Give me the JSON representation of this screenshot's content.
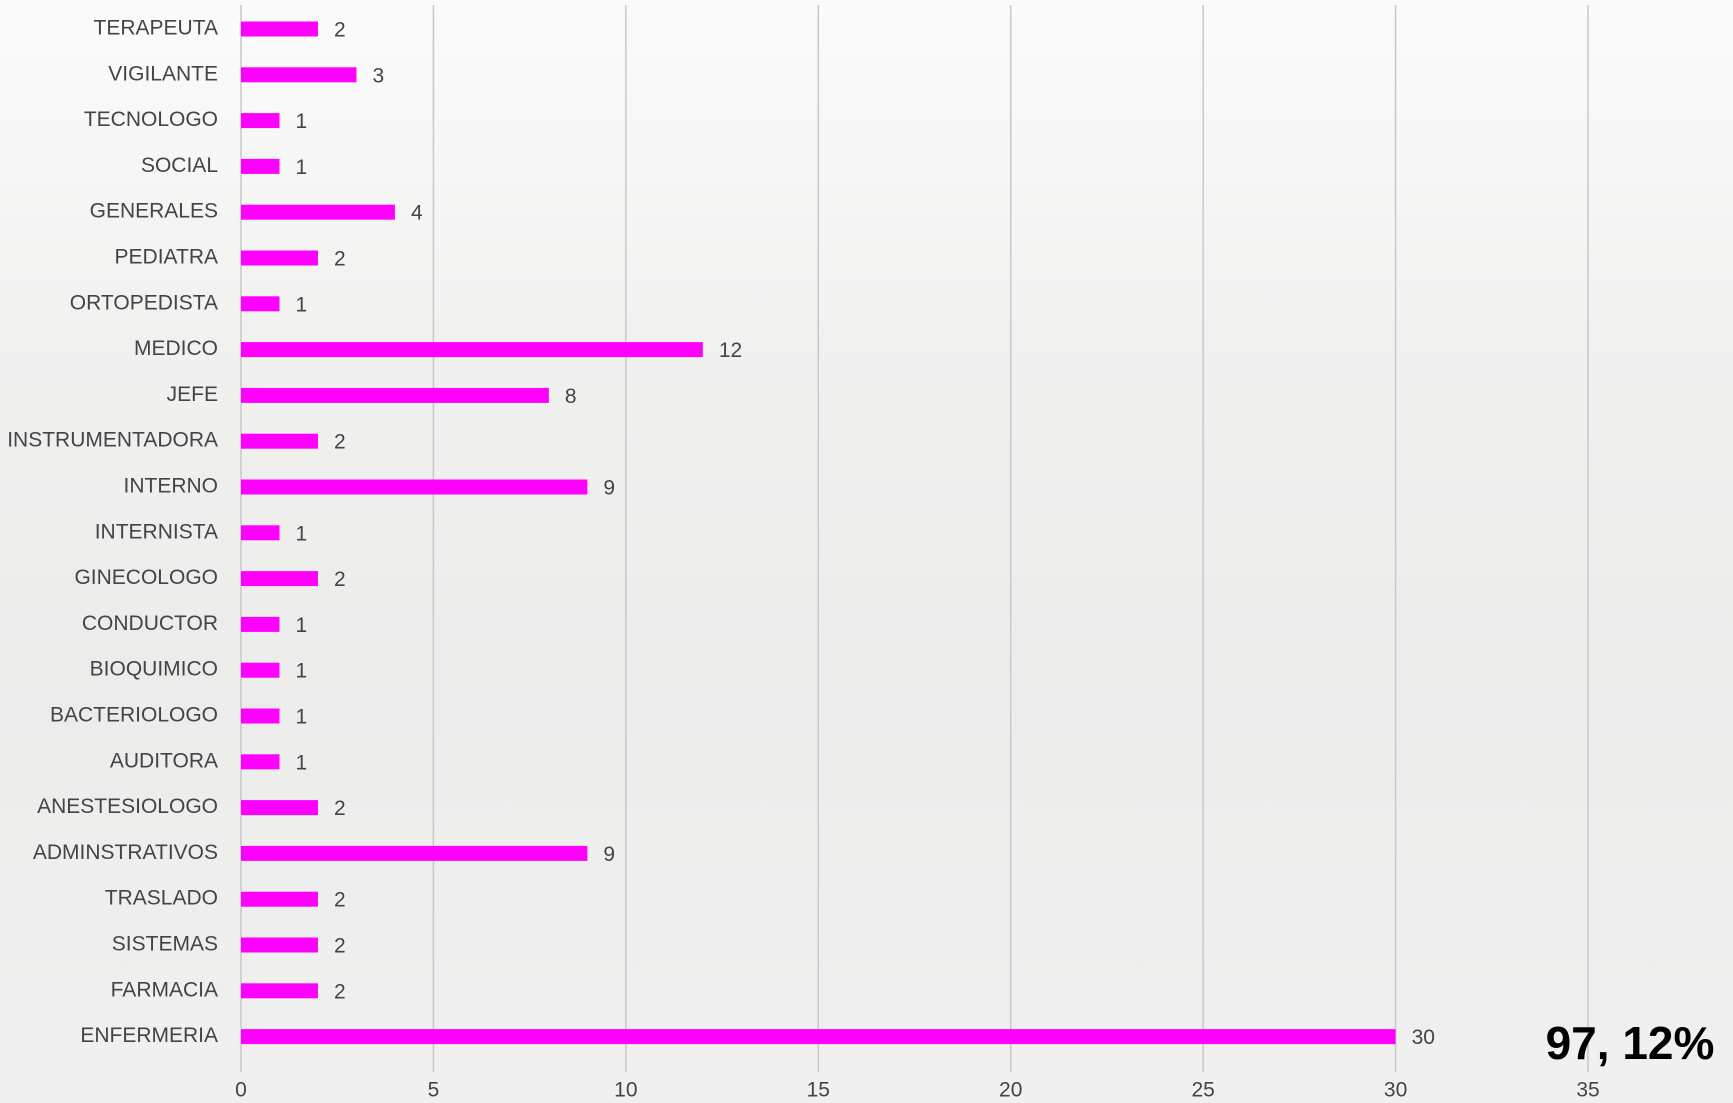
{
  "chart_data": {
    "type": "bar",
    "orientation": "horizontal",
    "categories": [
      "TERAPEUTA",
      "VIGILANTE",
      "TECNOLOGO",
      "SOCIAL",
      "GENERALES",
      "PEDIATRA",
      "ORTOPEDISTA",
      "MEDICO",
      "JEFE",
      "INSTRUMENTADORA",
      "INTERNO",
      "INTERNISTA",
      "GINECOLOGO",
      "CONDUCTOR",
      "BIOQUIMICO",
      "BACTERIOLOGO",
      "AUDITORA",
      "ANESTESIOLOGO",
      "ADMINSTRATIVOS",
      "TRASLADO",
      "SISTEMAS",
      "FARMACIA",
      "ENFERMERIA"
    ],
    "values": [
      2,
      3,
      1,
      1,
      4,
      2,
      1,
      12,
      8,
      2,
      9,
      1,
      2,
      1,
      1,
      1,
      1,
      2,
      9,
      2,
      2,
      2,
      30
    ],
    "color": "#ff00ff",
    "xlim": [
      0,
      35
    ],
    "xticks": [
      0,
      5,
      10,
      15,
      20,
      25,
      30,
      35
    ],
    "grid": true,
    "annotation": "97, 12%"
  }
}
